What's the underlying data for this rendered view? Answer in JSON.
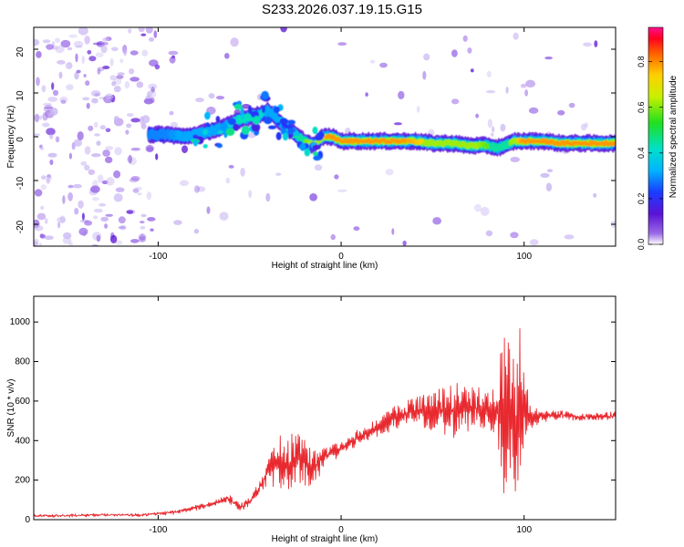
{
  "title": "S233.2026.037.19.15.G15",
  "colors": {
    "line": "#e8292f",
    "faint": "#c9b7f2",
    "mid": "#9a6ae6",
    "strong": "#5b12d6",
    "background": "#ffffff"
  },
  "chart_data": [
    {
      "type": "heatmap",
      "xlabel": "Height of straight line (km)",
      "ylabel": "Frequency (Hz)",
      "xlim": [
        -168,
        150
      ],
      "ylim": [
        -25,
        25
      ],
      "xticks": [
        -100,
        0,
        100
      ],
      "xtick_labels": [
        "-100",
        "0",
        "100"
      ],
      "yticks": [
        -20,
        -10,
        0,
        10,
        20
      ],
      "ytick_labels": [
        "-20",
        "-10",
        "0",
        "10",
        "20"
      ],
      "colorbar": {
        "label": "Normalized spectral amplitude",
        "range": [
          0.0,
          0.95
        ],
        "ticks": [
          0.0,
          0.2,
          0.4,
          0.6,
          0.8
        ],
        "tick_labels": [
          "0.0",
          "0.2",
          "0.4",
          "0.6",
          "0.8"
        ],
        "colormap": "rainbow"
      },
      "ridge": {
        "description_values": "dominant frequency (Hz) vs height (km)",
        "x": [
          -105,
          -95,
          -85,
          -75,
          -65,
          -55,
          -45,
          -40,
          -35,
          -30,
          -25,
          -20,
          -15,
          -10,
          -5,
          0,
          10,
          20,
          30,
          40,
          50,
          60,
          70,
          80,
          85,
          90,
          95,
          100,
          110,
          120,
          130,
          140,
          150
        ],
        "y": [
          0.5,
          0.5,
          0,
          1,
          2,
          4,
          5,
          6,
          4,
          2,
          0.5,
          -1,
          -2,
          0,
          0,
          -1,
          -1,
          -1,
          -1,
          -1,
          -1.5,
          -1.5,
          -2,
          -2,
          -2.5,
          -2,
          -1,
          -1,
          -1,
          -1.5,
          -1.5,
          -1.5,
          -1.5
        ],
        "amplitude": [
          0.3,
          0.3,
          0.35,
          0.35,
          0.4,
          0.45,
          0.45,
          0.4,
          0.35,
          0.4,
          0.5,
          0.6,
          0.7,
          0.8,
          0.85,
          0.9,
          0.9,
          0.9,
          0.85,
          0.8,
          0.75,
          0.75,
          0.7,
          0.6,
          0.5,
          0.5,
          0.75,
          0.85,
          0.9,
          0.9,
          0.85,
          0.85,
          0.85
        ]
      },
      "noise_region_x": [
        -168,
        -100
      ]
    },
    {
      "type": "line",
      "xlabel": "Height of straight line (km)",
      "ylabel": "SNR (10 * v/v)",
      "xlim": [
        -168,
        150
      ],
      "ylim": [
        0,
        1130
      ],
      "xticks": [
        -100,
        0,
        100
      ],
      "xtick_labels": [
        "-100",
        "0",
        "100"
      ],
      "yticks": [
        0,
        200,
        400,
        600,
        800,
        1000
      ],
      "ytick_labels": [
        "0",
        "200",
        "400",
        "600",
        "800",
        "1000"
      ],
      "series": [
        {
          "name": "SNR",
          "x": [
            -168,
            -150,
            -130,
            -110,
            -100,
            -90,
            -80,
            -70,
            -62,
            -55,
            -50,
            -45,
            -40,
            -35,
            -30,
            -25,
            -20,
            -15,
            -10,
            -5,
            0,
            10,
            20,
            30,
            40,
            50,
            60,
            70,
            80,
            85,
            88,
            90,
            95,
            98,
            100,
            102,
            105,
            110,
            120,
            130,
            140,
            150
          ],
          "y": [
            20,
            20,
            25,
            22,
            30,
            40,
            60,
            80,
            110,
            60,
            90,
            150,
            250,
            300,
            260,
            320,
            290,
            260,
            310,
            340,
            360,
            420,
            470,
            520,
            550,
            550,
            550,
            570,
            550,
            560,
            540,
            530,
            500,
            520,
            540,
            540,
            520,
            520,
            530,
            520,
            520,
            525
          ],
          "amplitude": [
            5,
            6,
            6,
            6,
            8,
            10,
            12,
            15,
            20,
            20,
            25,
            40,
            90,
            140,
            150,
            140,
            120,
            100,
            60,
            40,
            40,
            40,
            50,
            60,
            70,
            100,
            140,
            130,
            100,
            120,
            380,
            500,
            380,
            480,
            200,
            120,
            60,
            30,
            20,
            20,
            20,
            20
          ]
        }
      ]
    }
  ]
}
